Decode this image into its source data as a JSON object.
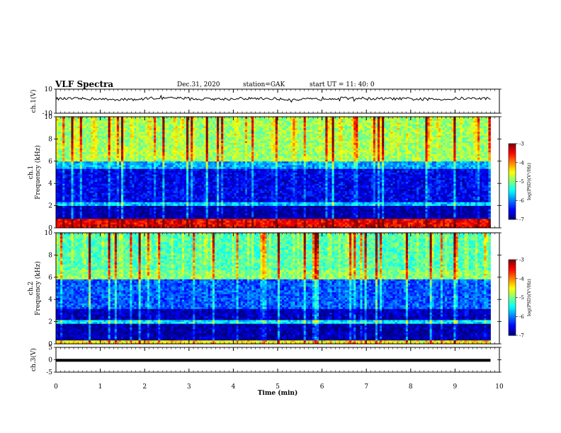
{
  "header": {
    "title": "VLF Spectra",
    "date": "Dec.31, 2020",
    "station": "station=GAK",
    "start": "start UT =  11: 40: 0"
  },
  "chart_data": [
    {
      "type": "line",
      "name": "ch1-waveform",
      "ylabel": "ch.1(V)",
      "ylim": [
        -10,
        10
      ],
      "yticks": [
        "10",
        "-10"
      ],
      "xlim": [
        0,
        10
      ],
      "series": [
        {
          "values": [
            2.0,
            1.5,
            2.5,
            1.8,
            2.2,
            1.6,
            2.4,
            2.0,
            1.7,
            2.3
          ]
        }
      ]
    },
    {
      "type": "heatmap",
      "name": "ch1-spectrogram",
      "ylabel": "ch.1\nFrequency (kHz)",
      "ylabel_line1": "ch.1",
      "ylabel_line2": "Frequency (kHz)",
      "ylim": [
        0,
        10
      ],
      "yticks": [
        "0",
        "2",
        "4",
        "6",
        "8",
        "10"
      ],
      "xlim": [
        0,
        9.8
      ],
      "colorbar": {
        "label": "log(PSD)(V²/Hz)",
        "range": [
          -7,
          -3
        ],
        "ticks": [
          "-3",
          "-4",
          "-5",
          "-6",
          "-7"
        ]
      },
      "bands": [
        {
          "from": 0,
          "to": 0.8,
          "level": -3.5
        },
        {
          "from": 0.8,
          "to": 2.0,
          "level": -6.9
        },
        {
          "from": 2.0,
          "to": 2.3,
          "level": -5.8
        },
        {
          "from": 2.3,
          "to": 5.3,
          "level": -6.6
        },
        {
          "from": 5.3,
          "to": 6.0,
          "level": -5.9
        },
        {
          "from": 6.0,
          "to": 10,
          "level": -4.9
        }
      ]
    },
    {
      "type": "heatmap",
      "name": "ch2-spectrogram",
      "ylabel": "ch.2\nFrequency (kHz)",
      "ylabel_line1": "ch.2",
      "ylabel_line2": "Frequency (kHz)",
      "ylim": [
        0,
        10
      ],
      "yticks": [
        "0",
        "2",
        "4",
        "6",
        "8",
        "10"
      ],
      "xlim": [
        0,
        9.8
      ],
      "colorbar": {
        "label": "log(PSD)(V²/Hz)",
        "range": [
          -7,
          -3
        ],
        "ticks": [
          "-3",
          "-4",
          "-5",
          "-6",
          "-7"
        ]
      },
      "bands": [
        {
          "from": 0,
          "to": 0.4,
          "level": -4.5
        },
        {
          "from": 0.4,
          "to": 1.8,
          "level": -6.9
        },
        {
          "from": 1.8,
          "to": 2.2,
          "level": -5.6
        },
        {
          "from": 2.2,
          "to": 3.2,
          "level": -6.8
        },
        {
          "from": 3.2,
          "to": 5.8,
          "level": -6.2
        },
        {
          "from": 5.8,
          "to": 6.6,
          "level": -5.0
        },
        {
          "from": 6.6,
          "to": 10,
          "level": -5.2
        }
      ]
    },
    {
      "type": "line",
      "name": "ch3-waveform",
      "ylabel": "ch.3(V)",
      "ylim": [
        -5,
        5
      ],
      "yticks": [
        "5",
        "0",
        "-5"
      ],
      "xlim": [
        0,
        10
      ],
      "series": [
        {
          "values": [
            -0.2,
            -0.2,
            -0.2,
            -0.2,
            -0.2,
            -0.2,
            -0.2,
            -0.2,
            -0.2,
            -0.2
          ]
        }
      ]
    }
  ],
  "xaxis": {
    "label": "Time (min)",
    "ticks": [
      "0",
      "1",
      "2",
      "3",
      "4",
      "5",
      "6",
      "7",
      "8",
      "9",
      "10"
    ],
    "range": [
      0,
      10
    ]
  }
}
